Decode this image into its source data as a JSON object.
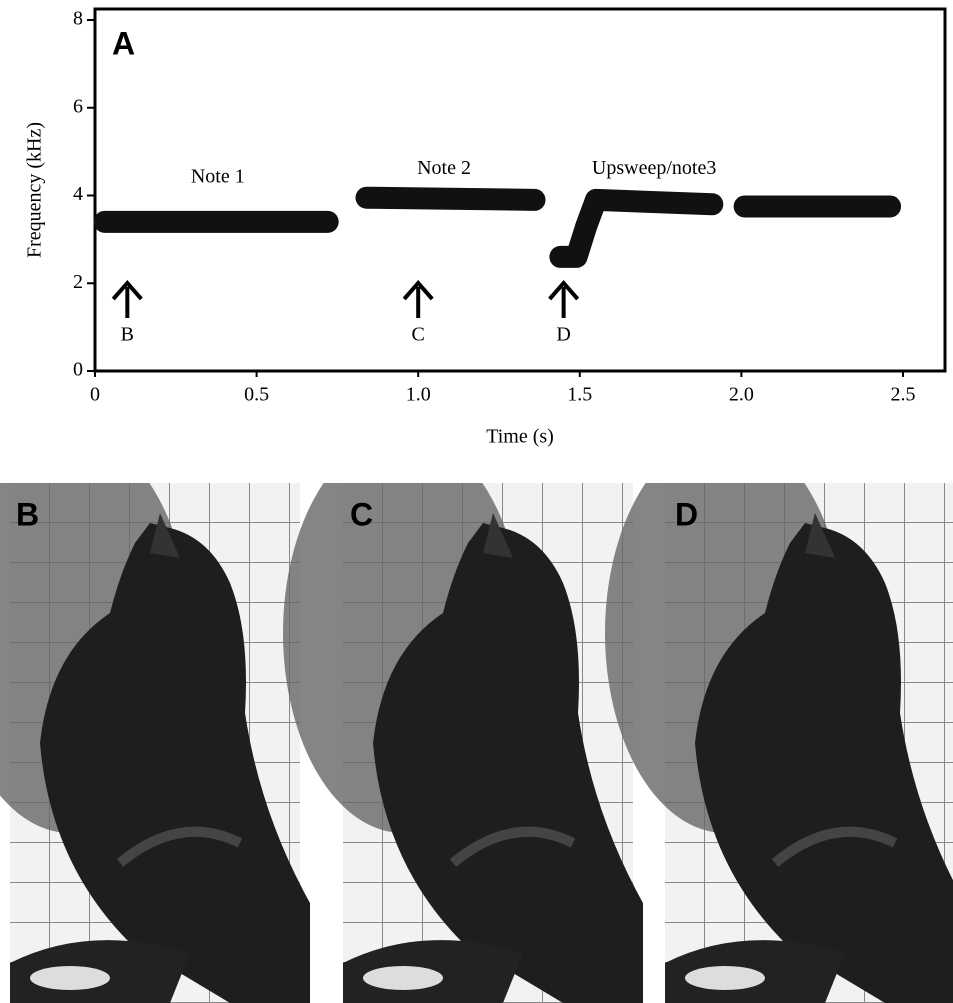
{
  "chart_data": {
    "type": "spectrogram",
    "panel_label": "A",
    "xlabel": "Time (s)",
    "ylabel": "Frequency (kHz)",
    "xlim": [
      0,
      2.63
    ],
    "ylim": [
      0,
      8
    ],
    "xticks": [
      0,
      0.5,
      {
        "value": 1,
        "label": "1.0"
      },
      1.5,
      {
        "value": 2,
        "label": "2.0"
      },
      2.5
    ],
    "yticks": [
      0,
      2,
      4,
      6,
      8
    ],
    "color": "#111111",
    "traces": [
      {
        "x": [
          0.03,
          0.72
        ],
        "y": [
          3.4,
          3.4
        ]
      },
      {
        "x": [
          0.84,
          1.36
        ],
        "y": [
          3.95,
          3.9
        ]
      },
      {
        "x": [
          1.44,
          1.49,
          1.52,
          1.55,
          1.91
        ],
        "y": [
          2.6,
          2.6,
          3.3,
          3.9,
          3.8
        ]
      },
      {
        "x": [
          2.01,
          2.46
        ],
        "y": [
          3.75,
          3.75
        ]
      }
    ],
    "annotations": [
      {
        "text": "Note 1",
        "x": 0.38,
        "y": 4.4
      },
      {
        "text": "Note 2",
        "x": 1.08,
        "y": 4.6
      },
      {
        "text": "Upsweep/note3",
        "x": 1.73,
        "y": 4.6
      }
    ],
    "markers": [
      {
        "label": "B",
        "x": 0.1
      },
      {
        "label": "C",
        "x": 1.0
      },
      {
        "label": "D",
        "x": 1.45
      }
    ]
  },
  "panels": [
    "B",
    "C",
    "D"
  ]
}
